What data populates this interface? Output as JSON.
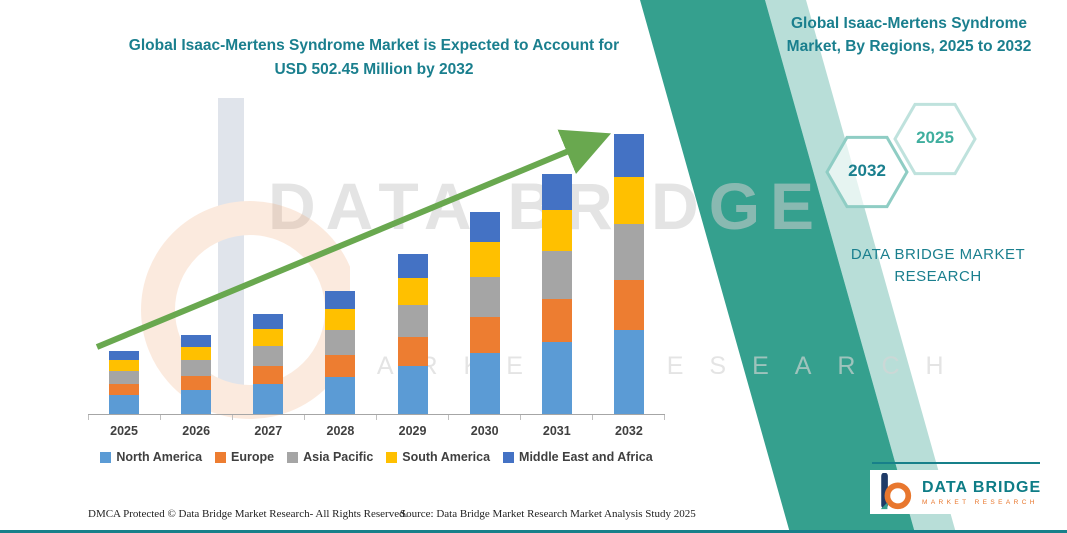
{
  "chart_title": "Global Isaac-Mertens Syndrome Market is Expected to Account for USD 502.45 Million by 2032",
  "right_panel": {
    "title": "Global Isaac-Mertens Syndrome Market, By Regions, 2025 to 2032",
    "hexagon_back": "2032",
    "hexagon_front": "2025",
    "brand_caption": "DATA BRIDGE MARKET RESEARCH"
  },
  "watermark": {
    "line1": "DATA BRIDGE",
    "line2": "MARKET RESEARCH"
  },
  "footer": {
    "dmca": "DMCA Protected © Data Bridge Market Research-  All Rights Reserved.",
    "source": "Source: Data Bridge Market Research  Market Analysis Study 2025"
  },
  "brand_logo": {
    "name": "DATA BRIDGE",
    "tagline": "MARKET RESEARCH"
  },
  "colors": {
    "accent_teal": "#1a7f8e",
    "band_teal": "#35a08e",
    "trend_arrow_green": "#69a84f",
    "bottom_rule_teal": "#17808a"
  },
  "chart_data": {
    "type": "bar",
    "stacked": true,
    "title": "Global Isaac-Mertens Syndrome Market is Expected to Account for USD 502.45 Million by 2032",
    "unit": "USD Million",
    "categories": [
      "2025",
      "2026",
      "2027",
      "2028",
      "2029",
      "2030",
      "2031",
      "2032"
    ],
    "series": [
      {
        "name": "North America",
        "color": "#5B9BD5",
        "values": [
          34,
          43,
          54,
          66,
          86,
          109,
          129,
          151
        ]
      },
      {
        "name": "Europe",
        "color": "#ED7D31",
        "values": [
          20,
          26,
          32,
          39,
          52,
          65,
          77,
          90
        ]
      },
      {
        "name": "Asia Pacific",
        "color": "#A5A5A5",
        "values": [
          23,
          29,
          36,
          44,
          57,
          72,
          86,
          100
        ]
      },
      {
        "name": "South America",
        "color": "#FFC000",
        "values": [
          19,
          24,
          30,
          37,
          49,
          62,
          73,
          85
        ]
      },
      {
        "name": "Middle East and Africa",
        "color": "#4472C4",
        "values": [
          17,
          21,
          27,
          33,
          43,
          54,
          64,
          76.45
        ]
      }
    ],
    "totals": [
      113,
      143,
      179,
      219,
      287,
      362,
      429,
      502.45
    ],
    "ylim": [
      0,
      520
    ],
    "grid": false,
    "legend_position": "bottom",
    "annotation": "Green upward trend arrow from 2025 to 2032"
  }
}
